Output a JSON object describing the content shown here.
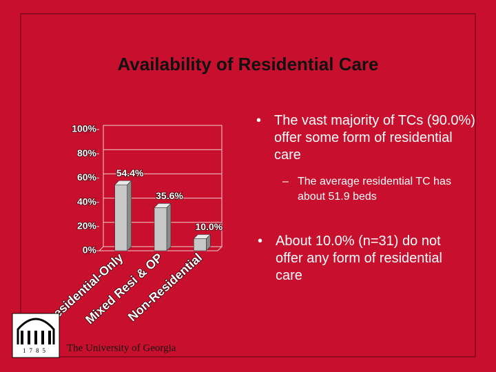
{
  "slide": {
    "title": "Availability of Residential Care",
    "bullets": [
      {
        "text": "The vast majority of TCs (90.0%) offer some form of residential care",
        "sub": "The average residential TC has about 51.9 beds"
      },
      {
        "text": "About 10.0% (n=31) do not offer any form of residential care"
      }
    ],
    "footer": "The University of Georgia",
    "logo_year": "1785"
  },
  "chart_data": {
    "type": "bar",
    "categories": [
      "Residential-Only",
      "Mixed Resi & OP",
      "Non-Residential"
    ],
    "values": [
      54.4,
      35.6,
      10.0
    ],
    "value_labels": [
      "54.4%",
      "35.6%",
      "10.0%"
    ],
    "color": "#c8c8c8",
    "ylim": [
      0,
      100
    ],
    "yticks": [
      {
        "value": 0,
        "label": "0%"
      },
      {
        "value": 20,
        "label": "20%"
      },
      {
        "value": 40,
        "label": "40%"
      },
      {
        "value": 60,
        "label": "60%"
      },
      {
        "value": 80,
        "label": "80%"
      },
      {
        "value": 100,
        "label": "100%"
      }
    ],
    "grid": true
  }
}
